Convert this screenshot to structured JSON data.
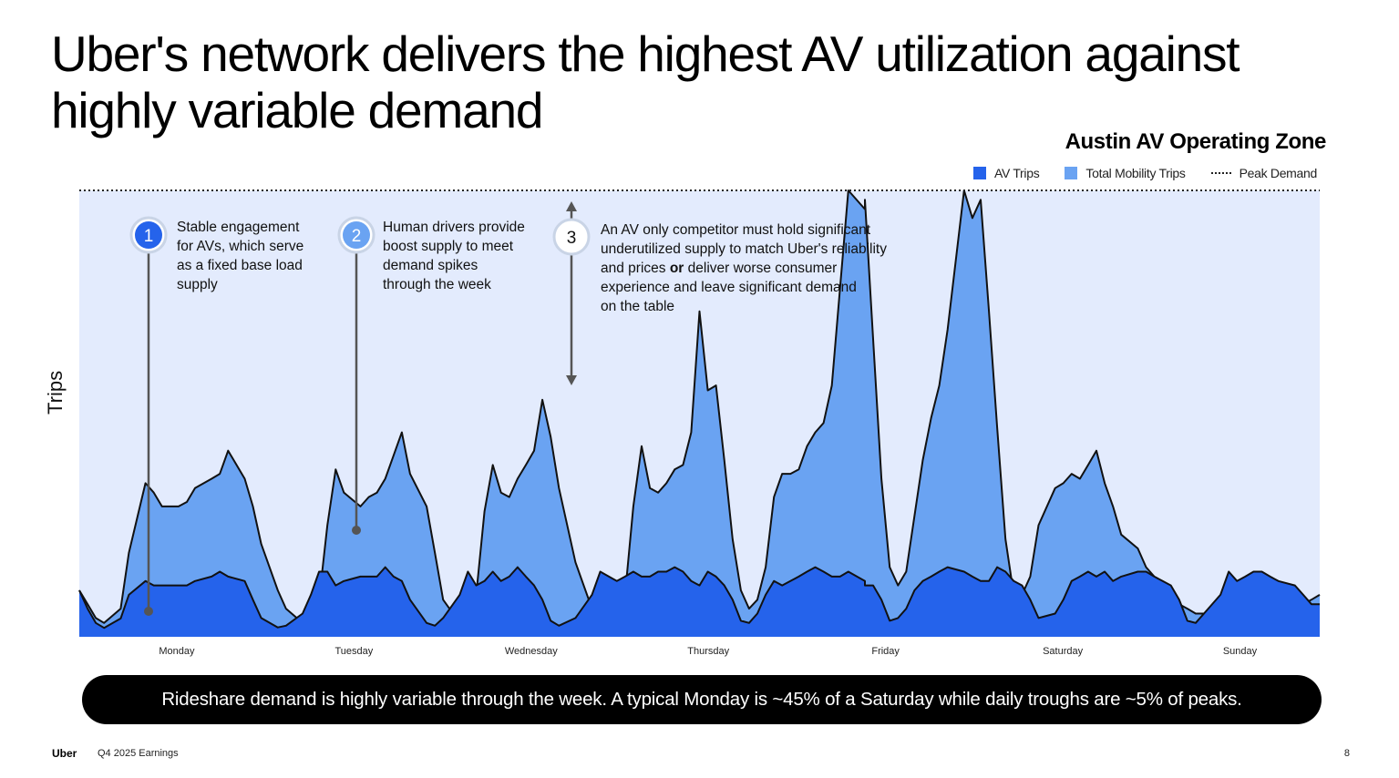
{
  "slide": {
    "title": "Uber's network delivers the highest AV utilization against highly variable demand",
    "banner": "Rideshare demand is highly variable through the week. A typical Monday is ~45% of a Saturday while daily troughs are ~5% of peaks.",
    "footer_logo": "Uber",
    "footer_text": "Q4 2025 Earnings",
    "page_number": "8"
  },
  "annotations": [
    {
      "number": "1",
      "lines": [
        "Stable engagement",
        "for AVs, which serve",
        "as a fixed base load",
        "supply"
      ],
      "style": "filled-dark",
      "color": "#2563eb"
    },
    {
      "number": "2",
      "lines": [
        "Human drivers provide",
        "boost supply to meet",
        "demand spikes",
        "through the week"
      ],
      "style": "filled-light",
      "color": "#6aa3f2"
    },
    {
      "number": "3",
      "lines": [
        "An AV only competitor must hold significant",
        "underutilized supply to match Uber's reliability",
        "and prices [or] deliver worse consumer",
        "experience and leave significant demand",
        "on the table"
      ],
      "style": "outline",
      "color": "#ffffff"
    }
  ],
  "chart_data": {
    "type": "area",
    "title": "Austin AV Operating Zone",
    "xlabel": "",
    "ylabel": "Trips",
    "ylim": [
      0,
      100
    ],
    "x_ticks": [
      "Monday",
      "Tuesday",
      "Wednesday",
      "Thursday",
      "Friday",
      "Saturday",
      "Sunday"
    ],
    "legend": {
      "position": "top-right",
      "entries": [
        "AV Trips",
        "Total Mobility Trips",
        "Peak Demand"
      ]
    },
    "peak_demand": 100,
    "colors": {
      "av_trips": "#2563eb",
      "total_mobility": "#6aa3f2",
      "plot_background": "#e3ebfd",
      "peak_line": "#222222",
      "line": "#111111"
    },
    "series": [
      {
        "name": "AV Trips",
        "points": [
          [
            0.0,
            10.4
          ],
          [
            0.1,
            6.3
          ],
          [
            0.2,
            3.1
          ],
          [
            0.3,
            2.0
          ],
          [
            0.5,
            4.1
          ],
          [
            0.6,
            9.4
          ],
          [
            0.8,
            12.5
          ],
          [
            0.9,
            11.5
          ],
          [
            1.0,
            11.5
          ],
          [
            1.2,
            11.5
          ],
          [
            1.3,
            11.5
          ],
          [
            1.4,
            12.5
          ],
          [
            1.6,
            13.5
          ],
          [
            1.7,
            14.6
          ],
          [
            1.8,
            13.5
          ],
          [
            2.0,
            12.5
          ],
          [
            2.1,
            8.3
          ],
          [
            2.2,
            4.2
          ],
          [
            2.4,
            2.1
          ],
          [
            2.5,
            2.5
          ],
          [
            2.7,
            5.2
          ],
          [
            2.8,
            9.4
          ],
          [
            2.9,
            14.6
          ],
          [
            3.0,
            14.6
          ],
          [
            3.1,
            11.5
          ],
          [
            3.2,
            12.5
          ],
          [
            3.4,
            13.5
          ],
          [
            3.5,
            13.5
          ],
          [
            3.6,
            13.5
          ],
          [
            3.7,
            15.6
          ],
          [
            3.8,
            13.5
          ],
          [
            3.9,
            12.5
          ],
          [
            4.0,
            8.3
          ],
          [
            4.2,
            3.1
          ],
          [
            4.3,
            2.5
          ],
          [
            4.4,
            4.2
          ],
          [
            4.6,
            9.4
          ],
          [
            4.7,
            14.6
          ],
          [
            4.8,
            11.5
          ],
          [
            4.9,
            12.5
          ],
          [
            5.0,
            14.6
          ],
          [
            5.1,
            12.5
          ],
          [
            5.2,
            13.5
          ],
          [
            5.3,
            15.6
          ],
          [
            5.4,
            13.5
          ],
          [
            5.5,
            11.5
          ],
          [
            5.6,
            8.3
          ],
          [
            5.7,
            3.6
          ],
          [
            5.8,
            2.5
          ],
          [
            6.0,
            4.2
          ],
          [
            6.2,
            9.4
          ],
          [
            6.3,
            14.6
          ],
          [
            6.5,
            12.5
          ],
          [
            6.6,
            13.5
          ],
          [
            6.7,
            14.6
          ],
          [
            6.8,
            13.5
          ],
          [
            6.9,
            13.5
          ],
          [
            7.0,
            14.6
          ],
          [
            7.1,
            14.6
          ],
          [
            7.2,
            15.6
          ],
          [
            7.3,
            14.6
          ],
          [
            7.4,
            12.5
          ],
          [
            7.5,
            11.5
          ],
          [
            7.6,
            14.6
          ],
          [
            7.7,
            13.5
          ],
          [
            7.8,
            11.5
          ],
          [
            7.9,
            8.3
          ],
          [
            8.0,
            3.6
          ],
          [
            8.1,
            3.1
          ],
          [
            8.2,
            5.2
          ],
          [
            8.3,
            9.4
          ],
          [
            8.4,
            12.5
          ],
          [
            8.5,
            11.5
          ],
          [
            8.6,
            12.5
          ],
          [
            8.7,
            13.5
          ],
          [
            8.8,
            14.6
          ],
          [
            8.9,
            15.6
          ],
          [
            9.0,
            14.6
          ],
          [
            9.1,
            13.5
          ],
          [
            9.2,
            13.5
          ],
          [
            9.3,
            14.6
          ],
          [
            9.5,
            12.5
          ],
          [
            9.5,
            11.5
          ],
          [
            9.6,
            11.5
          ],
          [
            9.7,
            8.3
          ],
          [
            9.8,
            3.6
          ],
          [
            9.9,
            4.2
          ],
          [
            10.0,
            6.3
          ],
          [
            10.1,
            10.4
          ],
          [
            10.2,
            12.5
          ],
          [
            10.3,
            13.5
          ],
          [
            10.4,
            14.6
          ],
          [
            10.5,
            15.6
          ],
          [
            10.7,
            14.6
          ],
          [
            10.8,
            13.5
          ],
          [
            10.9,
            12.5
          ],
          [
            11.0,
            12.5
          ],
          [
            11.1,
            15.6
          ],
          [
            11.2,
            14.6
          ],
          [
            11.3,
            12.5
          ],
          [
            11.4,
            11.5
          ],
          [
            11.5,
            8.3
          ],
          [
            11.6,
            4.2
          ],
          [
            11.8,
            5.2
          ],
          [
            11.9,
            8.3
          ],
          [
            12.0,
            12.5
          ],
          [
            12.1,
            13.5
          ],
          [
            12.2,
            14.6
          ],
          [
            12.3,
            13.5
          ],
          [
            12.4,
            14.6
          ],
          [
            12.5,
            12.5
          ],
          [
            12.6,
            13.5
          ],
          [
            12.8,
            14.6
          ],
          [
            12.9,
            14.6
          ],
          [
            13.0,
            13.5
          ],
          [
            13.1,
            12.5
          ],
          [
            13.2,
            11.5
          ],
          [
            13.3,
            8.3
          ],
          [
            13.4,
            3.6
          ],
          [
            13.5,
            3.1
          ],
          [
            13.6,
            5.2
          ],
          [
            13.8,
            9.4
          ],
          [
            13.9,
            14.6
          ],
          [
            14.0,
            12.5
          ],
          [
            14.1,
            13.5
          ],
          [
            14.2,
            14.6
          ],
          [
            14.3,
            14.6
          ],
          [
            14.4,
            13.5
          ],
          [
            14.5,
            12.5
          ],
          [
            14.7,
            11.5
          ],
          [
            14.8,
            9.4
          ],
          [
            14.9,
            7.3
          ],
          [
            15.0,
            7.3
          ]
        ]
      },
      {
        "name": "Total Mobility Trips",
        "points": [
          [
            0.0,
            10.4
          ],
          [
            0.1,
            7.3
          ],
          [
            0.2,
            4.2
          ],
          [
            0.3,
            3.1
          ],
          [
            0.5,
            6.3
          ],
          [
            0.6,
            18.8
          ],
          [
            0.8,
            34.4
          ],
          [
            0.9,
            32.3
          ],
          [
            1.0,
            29.2
          ],
          [
            1.2,
            29.2
          ],
          [
            1.3,
            30.2
          ],
          [
            1.4,
            33.3
          ],
          [
            1.6,
            35.4
          ],
          [
            1.7,
            36.5
          ],
          [
            1.8,
            41.7
          ],
          [
            2.0,
            35.4
          ],
          [
            2.1,
            29.2
          ],
          [
            2.2,
            20.8
          ],
          [
            2.4,
            10.4
          ],
          [
            2.5,
            6.3
          ],
          [
            2.7,
            3.1
          ],
          [
            2.8,
            3.1
          ],
          [
            2.9,
            8.3
          ],
          [
            3.0,
            25.0
          ],
          [
            3.1,
            37.5
          ],
          [
            3.2,
            32.3
          ],
          [
            3.4,
            29.2
          ],
          [
            3.5,
            31.3
          ],
          [
            3.6,
            32.3
          ],
          [
            3.7,
            35.4
          ],
          [
            3.8,
            40.6
          ],
          [
            3.9,
            45.8
          ],
          [
            4.0,
            36.5
          ],
          [
            4.2,
            29.2
          ],
          [
            4.3,
            18.8
          ],
          [
            4.4,
            8.3
          ],
          [
            4.6,
            3.1
          ],
          [
            4.7,
            4.2
          ],
          [
            4.8,
            9.4
          ],
          [
            4.9,
            28.1
          ],
          [
            5.0,
            38.5
          ],
          [
            5.1,
            32.3
          ],
          [
            5.2,
            31.3
          ],
          [
            5.3,
            35.4
          ],
          [
            5.4,
            38.5
          ],
          [
            5.5,
            41.7
          ],
          [
            5.6,
            53.1
          ],
          [
            5.7,
            44.8
          ],
          [
            5.8,
            33.3
          ],
          [
            6.0,
            16.7
          ],
          [
            6.2,
            6.3
          ],
          [
            6.3,
            2.1
          ],
          [
            6.5,
            4.2
          ],
          [
            6.6,
            9.4
          ],
          [
            6.7,
            29.2
          ],
          [
            6.8,
            42.7
          ],
          [
            6.9,
            33.3
          ],
          [
            7.0,
            32.3
          ],
          [
            7.1,
            34.4
          ],
          [
            7.2,
            37.5
          ],
          [
            7.3,
            38.5
          ],
          [
            7.4,
            45.8
          ],
          [
            7.5,
            72.9
          ],
          [
            7.6,
            55.2
          ],
          [
            7.7,
            56.3
          ],
          [
            7.8,
            39.6
          ],
          [
            7.9,
            21.9
          ],
          [
            8.0,
            10.4
          ],
          [
            8.1,
            6.3
          ],
          [
            8.2,
            8.3
          ],
          [
            8.3,
            15.6
          ],
          [
            8.4,
            31.3
          ],
          [
            8.5,
            36.5
          ],
          [
            8.6,
            36.5
          ],
          [
            8.7,
            37.5
          ],
          [
            8.8,
            42.7
          ],
          [
            8.9,
            45.8
          ],
          [
            9.0,
            47.9
          ],
          [
            9.1,
            56.3
          ],
          [
            9.2,
            78.1
          ],
          [
            9.3,
            100.0
          ],
          [
            9.5,
            95.8
          ],
          [
            9.5,
            97.9
          ],
          [
            9.6,
            66.7
          ],
          [
            9.7,
            35.4
          ],
          [
            9.8,
            15.6
          ],
          [
            9.9,
            11.5
          ],
          [
            10.0,
            14.6
          ],
          [
            10.1,
            27.1
          ],
          [
            10.2,
            39.6
          ],
          [
            10.3,
            49.0
          ],
          [
            10.4,
            56.3
          ],
          [
            10.5,
            68.8
          ],
          [
            10.7,
            100.0
          ],
          [
            10.8,
            93.8
          ],
          [
            10.9,
            97.9
          ],
          [
            11.0,
            72.9
          ],
          [
            11.1,
            46.9
          ],
          [
            11.2,
            21.9
          ],
          [
            11.3,
            9.4
          ],
          [
            11.4,
            9.4
          ],
          [
            11.5,
            13.5
          ],
          [
            11.6,
            25.0
          ],
          [
            11.8,
            33.3
          ],
          [
            11.9,
            34.4
          ],
          [
            12.0,
            36.5
          ],
          [
            12.1,
            35.4
          ],
          [
            12.2,
            38.5
          ],
          [
            12.3,
            41.7
          ],
          [
            12.4,
            34.4
          ],
          [
            12.5,
            29.2
          ],
          [
            12.6,
            22.9
          ],
          [
            12.8,
            19.8
          ],
          [
            12.9,
            15.6
          ],
          [
            13.0,
            13.5
          ],
          [
            13.1,
            10.4
          ],
          [
            13.2,
            8.3
          ],
          [
            13.3,
            7.3
          ],
          [
            13.4,
            6.3
          ],
          [
            13.5,
            5.2
          ],
          [
            13.6,
            5.2
          ],
          [
            13.8,
            6.3
          ],
          [
            13.9,
            7.3
          ],
          [
            14.0,
            9.4
          ],
          [
            14.1,
            10.4
          ],
          [
            14.2,
            9.4
          ],
          [
            14.3,
            8.3
          ],
          [
            14.4,
            7.3
          ],
          [
            14.5,
            6.3
          ],
          [
            14.7,
            6.3
          ],
          [
            14.8,
            7.3
          ],
          [
            14.9,
            8.3
          ],
          [
            15.0,
            9.4
          ]
        ]
      }
    ]
  }
}
